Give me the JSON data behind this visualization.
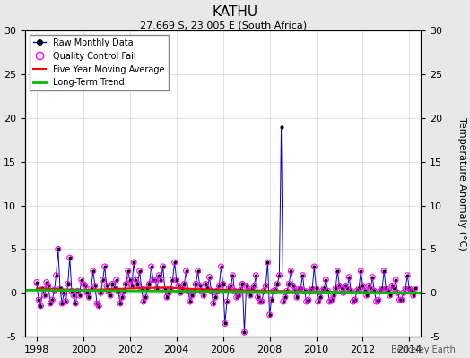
{
  "title": "KATHU",
  "subtitle": "27.669 S, 23.005 E (South Africa)",
  "footer": "Berkeley Earth",
  "ylabel_right": "Temperature Anomaly (°C)",
  "xlim": [
    1997.5,
    2014.5
  ],
  "ylim": [
    -5,
    30
  ],
  "yticks": [
    -5,
    0,
    5,
    10,
    15,
    20,
    25,
    30
  ],
  "xticks": [
    1998,
    2000,
    2002,
    2004,
    2006,
    2008,
    2010,
    2012,
    2014
  ],
  "background_color": "#e8e8e8",
  "plot_bg_color": "#ffffff",
  "raw_line_color": "#0000cc",
  "raw_marker_color": "#000000",
  "qc_fail_color": "#ff00ff",
  "moving_avg_color": "#ff0000",
  "trend_color": "#00bb00",
  "raw_data_x": [
    1998.0,
    1998.083,
    1998.167,
    1998.25,
    1998.333,
    1998.417,
    1998.5,
    1998.583,
    1998.667,
    1998.75,
    1998.833,
    1998.917,
    1999.0,
    1999.083,
    1999.167,
    1999.25,
    1999.333,
    1999.417,
    1999.5,
    1999.583,
    1999.667,
    1999.75,
    1999.833,
    1999.917,
    2000.0,
    2000.083,
    2000.167,
    2000.25,
    2000.333,
    2000.417,
    2000.5,
    2000.583,
    2000.667,
    2000.75,
    2000.833,
    2000.917,
    2001.0,
    2001.083,
    2001.167,
    2001.25,
    2001.333,
    2001.417,
    2001.5,
    2001.583,
    2001.667,
    2001.75,
    2001.833,
    2001.917,
    2002.0,
    2002.083,
    2002.167,
    2002.25,
    2002.333,
    2002.417,
    2002.5,
    2002.583,
    2002.667,
    2002.75,
    2002.833,
    2002.917,
    2003.0,
    2003.083,
    2003.167,
    2003.25,
    2003.333,
    2003.417,
    2003.5,
    2003.583,
    2003.667,
    2003.75,
    2003.833,
    2003.917,
    2004.0,
    2004.083,
    2004.167,
    2004.25,
    2004.333,
    2004.417,
    2004.5,
    2004.583,
    2004.667,
    2004.75,
    2004.833,
    2004.917,
    2005.0,
    2005.083,
    2005.167,
    2005.25,
    2005.333,
    2005.417,
    2005.5,
    2005.583,
    2005.667,
    2005.75,
    2005.833,
    2005.917,
    2006.0,
    2006.083,
    2006.167,
    2006.25,
    2006.333,
    2006.417,
    2006.5,
    2006.583,
    2006.667,
    2006.75,
    2006.833,
    2006.917,
    2007.0,
    2007.083,
    2007.167,
    2007.25,
    2007.333,
    2007.417,
    2007.5,
    2007.583,
    2007.667,
    2007.75,
    2007.833,
    2007.917,
    2008.0,
    2008.083,
    2008.167,
    2008.25,
    2008.333,
    2008.417,
    2008.5,
    2008.583,
    2008.667,
    2008.75,
    2008.833,
    2008.917,
    2009.0,
    2009.083,
    2009.167,
    2009.25,
    2009.333,
    2009.417,
    2009.5,
    2009.583,
    2009.667,
    2009.75,
    2009.833,
    2009.917,
    2010.0,
    2010.083,
    2010.167,
    2010.25,
    2010.333,
    2010.417,
    2010.5,
    2010.583,
    2010.667,
    2010.75,
    2010.833,
    2010.917,
    2011.0,
    2011.083,
    2011.167,
    2011.25,
    2011.333,
    2011.417,
    2011.5,
    2011.583,
    2011.667,
    2011.75,
    2011.833,
    2011.917,
    2012.0,
    2012.083,
    2012.167,
    2012.25,
    2012.333,
    2012.417,
    2012.5,
    2012.583,
    2012.667,
    2012.75,
    2012.833,
    2012.917,
    2013.0,
    2013.083,
    2013.167,
    2013.25,
    2013.333,
    2013.417,
    2013.5,
    2013.583,
    2013.667,
    2013.75,
    2013.833,
    2013.917,
    2014.0,
    2014.083,
    2014.167,
    2014.25
  ],
  "raw_data_y": [
    1.2,
    -0.8,
    -1.5,
    0.5,
    -0.3,
    1.2,
    0.8,
    -1.2,
    -0.8,
    0.3,
    2.0,
    5.0,
    0.5,
    -1.2,
    0.0,
    -1.0,
    1.0,
    4.0,
    0.2,
    -0.3,
    -1.2,
    0.2,
    -0.3,
    1.5,
    1.0,
    0.8,
    0.0,
    -0.5,
    0.5,
    2.5,
    0.8,
    -1.2,
    -1.5,
    0.0,
    1.5,
    3.0,
    0.8,
    0.2,
    -0.3,
    1.0,
    0.5,
    1.5,
    0.2,
    -1.2,
    -0.5,
    0.2,
    1.0,
    2.5,
    1.5,
    0.8,
    3.5,
    1.5,
    1.0,
    2.5,
    0.5,
    -1.0,
    -0.5,
    0.5,
    1.0,
    3.0,
    1.5,
    1.5,
    0.5,
    2.0,
    1.5,
    3.0,
    0.5,
    -0.5,
    0.0,
    0.5,
    1.5,
    3.5,
    1.5,
    0.8,
    0.0,
    0.5,
    1.0,
    2.5,
    0.2,
    -1.0,
    -0.3,
    0.2,
    1.0,
    2.5,
    0.8,
    0.2,
    -0.3,
    1.0,
    0.5,
    1.8,
    0.2,
    -1.2,
    -0.5,
    0.2,
    0.8,
    3.0,
    1.0,
    -3.5,
    -1.0,
    0.5,
    0.8,
    2.0,
    0.2,
    -0.5,
    -0.3,
    0.3,
    1.0,
    -4.5,
    0.8,
    0.2,
    -0.3,
    0.5,
    0.8,
    2.0,
    -0.5,
    -1.0,
    -1.0,
    0.2,
    0.8,
    3.5,
    -2.5,
    -0.8,
    0.2,
    0.3,
    1.0,
    2.0,
    19.0,
    -1.0,
    -0.5,
    0.2,
    1.0,
    2.5,
    0.8,
    0.2,
    -0.5,
    0.5,
    0.5,
    2.0,
    0.2,
    -1.0,
    -0.8,
    0.2,
    0.5,
    3.0,
    0.5,
    -1.0,
    -0.5,
    0.2,
    0.5,
    1.5,
    0.2,
    -1.0,
    -0.8,
    -0.3,
    0.5,
    2.5,
    0.8,
    0.5,
    0.0,
    0.8,
    0.5,
    1.8,
    0.2,
    -1.0,
    -0.8,
    0.2,
    0.5,
    2.5,
    0.8,
    0.2,
    -0.3,
    0.8,
    0.5,
    1.8,
    0.2,
    -1.0,
    -0.8,
    0.2,
    0.5,
    2.5,
    0.5,
    0.2,
    -0.3,
    0.8,
    0.5,
    1.5,
    0.0,
    -0.8,
    -0.8,
    0.0,
    0.5,
    2.0,
    0.5,
    0.2,
    -0.3,
    0.5
  ],
  "qc_fail_x": [
    1998.0,
    1998.083,
    1998.167,
    1998.25,
    1998.333,
    1998.417,
    1998.5,
    1998.583,
    1998.667,
    1998.75,
    1998.833,
    1998.917,
    1999.0,
    1999.083,
    1999.167,
    1999.25,
    1999.333,
    1999.417,
    1999.5,
    1999.583,
    1999.667,
    1999.75,
    1999.833,
    1999.917,
    2000.0,
    2000.083,
    2000.167,
    2000.25,
    2000.333,
    2000.417,
    2000.5,
    2000.583,
    2000.667,
    2000.75,
    2000.833,
    2000.917,
    2001.0,
    2001.083,
    2001.167,
    2001.25,
    2001.333,
    2001.417,
    2001.5,
    2001.583,
    2001.667,
    2001.75,
    2001.833,
    2001.917,
    2002.0,
    2002.083,
    2002.167,
    2002.25,
    2002.333,
    2002.417,
    2002.5,
    2002.583,
    2002.667,
    2002.75,
    2002.833,
    2002.917,
    2003.0,
    2003.083,
    2003.167,
    2003.25,
    2003.333,
    2003.417,
    2003.5,
    2003.583,
    2003.667,
    2003.75,
    2003.833,
    2003.917,
    2004.0,
    2004.083,
    2004.167,
    2004.25,
    2004.333,
    2004.417,
    2004.5,
    2004.583,
    2004.667,
    2004.75,
    2004.833,
    2004.917,
    2005.0,
    2005.083,
    2005.167,
    2005.25,
    2005.333,
    2005.417,
    2005.5,
    2005.583,
    2005.667,
    2005.75,
    2005.833,
    2005.917,
    2006.0,
    2006.083,
    2006.167,
    2006.25,
    2006.333,
    2006.417,
    2006.5,
    2006.583,
    2006.667,
    2006.75,
    2006.833,
    2006.917,
    2007.0,
    2007.083,
    2007.167,
    2007.25,
    2007.333,
    2007.417,
    2007.5,
    2007.583,
    2007.667,
    2007.75,
    2007.833,
    2007.917,
    2008.0,
    2008.083,
    2008.167,
    2008.25,
    2008.333,
    2008.417,
    2008.583,
    2008.667,
    2008.75,
    2008.833,
    2008.917,
    2009.0,
    2009.083,
    2009.167,
    2009.25,
    2009.333,
    2009.417,
    2009.5,
    2009.583,
    2009.667,
    2009.75,
    2009.833,
    2009.917,
    2010.0,
    2010.083,
    2010.167,
    2010.25,
    2010.333,
    2010.417,
    2010.5,
    2010.583,
    2010.667,
    2010.75,
    2010.833,
    2010.917,
    2011.0,
    2011.083,
    2011.167,
    2011.25,
    2011.333,
    2011.417,
    2011.5,
    2011.583,
    2011.667,
    2011.75,
    2011.833,
    2011.917,
    2012.0,
    2012.083,
    2012.167,
    2012.25,
    2012.333,
    2012.417,
    2012.5,
    2012.583,
    2012.667,
    2012.75,
    2012.833,
    2012.917,
    2013.0,
    2013.083,
    2013.167,
    2013.25,
    2013.333,
    2013.417,
    2013.5,
    2013.583,
    2013.667,
    2013.75,
    2013.833,
    2013.917,
    2014.0,
    2014.083,
    2014.167,
    2014.25
  ],
  "qc_fail_y": [
    1.2,
    -0.8,
    -1.5,
    0.5,
    -0.3,
    1.2,
    0.8,
    -1.2,
    -0.8,
    0.3,
    2.0,
    5.0,
    0.5,
    -1.2,
    0.0,
    -1.0,
    1.0,
    4.0,
    0.2,
    -0.3,
    -1.2,
    0.2,
    -0.3,
    1.5,
    1.0,
    0.8,
    0.0,
    -0.5,
    0.5,
    2.5,
    0.8,
    -1.2,
    -1.5,
    0.0,
    1.5,
    3.0,
    0.8,
    0.2,
    -0.3,
    1.0,
    0.5,
    1.5,
    0.2,
    -1.2,
    -0.5,
    0.2,
    1.0,
    2.5,
    1.5,
    0.8,
    3.5,
    1.5,
    1.0,
    2.5,
    0.5,
    -1.0,
    -0.5,
    0.5,
    1.0,
    3.0,
    1.5,
    1.5,
    0.5,
    2.0,
    1.5,
    3.0,
    0.5,
    -0.5,
    0.0,
    0.5,
    1.5,
    3.5,
    1.5,
    0.8,
    0.0,
    0.5,
    1.0,
    2.5,
    0.2,
    -1.0,
    -0.3,
    0.2,
    1.0,
    2.5,
    0.8,
    0.2,
    -0.3,
    1.0,
    0.5,
    1.8,
    0.2,
    -1.2,
    -0.5,
    0.2,
    0.8,
    3.0,
    1.0,
    -3.5,
    -1.0,
    0.5,
    0.8,
    2.0,
    0.2,
    -0.5,
    -0.3,
    0.3,
    1.0,
    -4.5,
    0.8,
    0.2,
    -0.3,
    0.5,
    0.8,
    2.0,
    -0.5,
    -1.0,
    -1.0,
    0.2,
    0.8,
    3.5,
    -2.5,
    -0.8,
    0.2,
    0.3,
    1.0,
    2.0,
    -1.0,
    -0.5,
    0.2,
    1.0,
    2.5,
    0.8,
    0.2,
    -0.5,
    0.5,
    0.5,
    2.0,
    0.2,
    -1.0,
    -0.8,
    0.2,
    0.5,
    3.0,
    0.5,
    -1.0,
    -0.5,
    0.2,
    0.5,
    1.5,
    0.2,
    -1.0,
    -0.8,
    -0.3,
    0.5,
    2.5,
    0.8,
    0.5,
    0.0,
    0.8,
    0.5,
    1.8,
    0.2,
    -1.0,
    -0.8,
    0.2,
    0.5,
    2.5,
    0.8,
    0.2,
    -0.3,
    0.8,
    0.5,
    1.8,
    0.2,
    -1.0,
    -0.8,
    0.2,
    0.5,
    2.5,
    0.5,
    0.2,
    -0.3,
    0.8,
    0.5,
    1.5,
    0.0,
    -0.8,
    -0.8,
    0.0,
    0.5,
    2.0,
    0.5,
    0.2,
    -0.3,
    0.5
  ],
  "moving_avg_x": [
    1998.0,
    2000.0,
    2002.0,
    2003.5,
    2005.0,
    2006.5,
    2008.5,
    2010.0,
    2012.0,
    2014.25
  ],
  "moving_avg_y": [
    0.5,
    0.3,
    0.5,
    0.6,
    0.4,
    0.3,
    0.2,
    0.1,
    0.0,
    -0.1
  ],
  "trend_x": [
    1997.5,
    2014.5
  ],
  "trend_y": [
    0.3,
    0.0
  ]
}
